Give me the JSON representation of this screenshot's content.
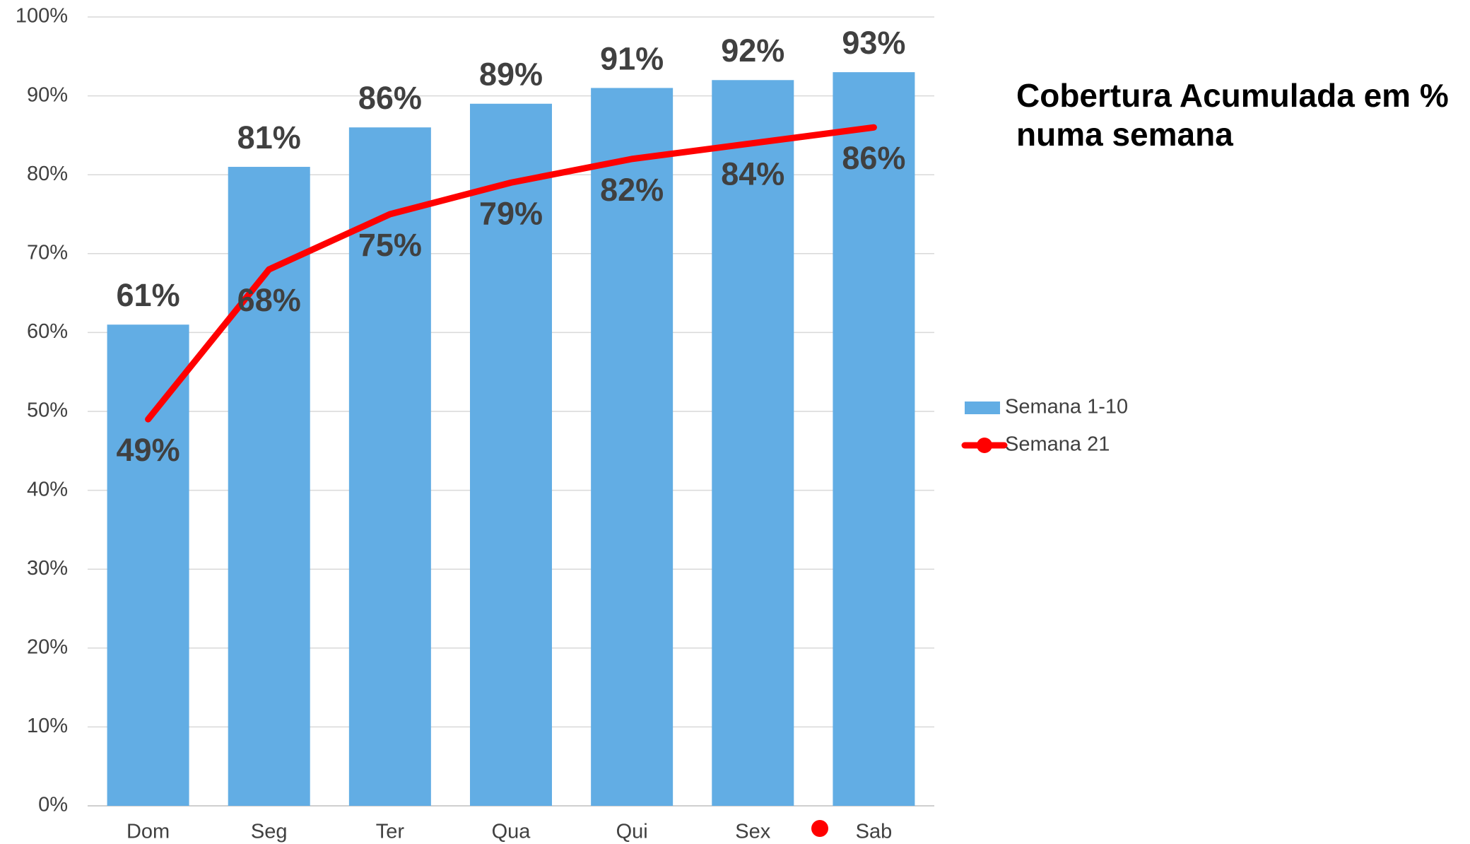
{
  "chart_data": {
    "type": "bar",
    "title": "Cobertura Acumulada em % numa semana",
    "categories": [
      "Dom",
      "Seg",
      "Ter",
      "Qua",
      "Qui",
      "Sex",
      "Sab"
    ],
    "series": [
      {
        "name": "Semana 1-10",
        "type": "bar",
        "color": "#62ade4",
        "values": [
          61,
          81,
          86,
          89,
          91,
          92,
          93
        ],
        "value_labels": [
          "61%",
          "81%",
          "86%",
          "89%",
          "91%",
          "92%",
          "93%"
        ]
      },
      {
        "name": "Semana 21",
        "type": "line",
        "color": "#ff0000",
        "values": [
          49,
          68,
          75,
          79,
          82,
          84,
          86
        ],
        "value_labels": [
          "49%",
          "68%",
          "75%",
          "79%",
          "82%",
          "84%",
          "86%"
        ]
      }
    ],
    "ylim": [
      0,
      100
    ],
    "yticks": [
      {
        "value": 0,
        "label": "0%"
      },
      {
        "value": 10,
        "label": "10%"
      },
      {
        "value": 20,
        "label": "20%"
      },
      {
        "value": 30,
        "label": "30%"
      },
      {
        "value": 40,
        "label": "40%"
      },
      {
        "value": 50,
        "label": "50%"
      },
      {
        "value": 60,
        "label": "60%"
      },
      {
        "value": 70,
        "label": "70%"
      },
      {
        "value": 80,
        "label": "80%"
      },
      {
        "value": 90,
        "label": "90%"
      },
      {
        "value": 100,
        "label": "100%"
      }
    ],
    "grid": true,
    "legend": "right"
  }
}
